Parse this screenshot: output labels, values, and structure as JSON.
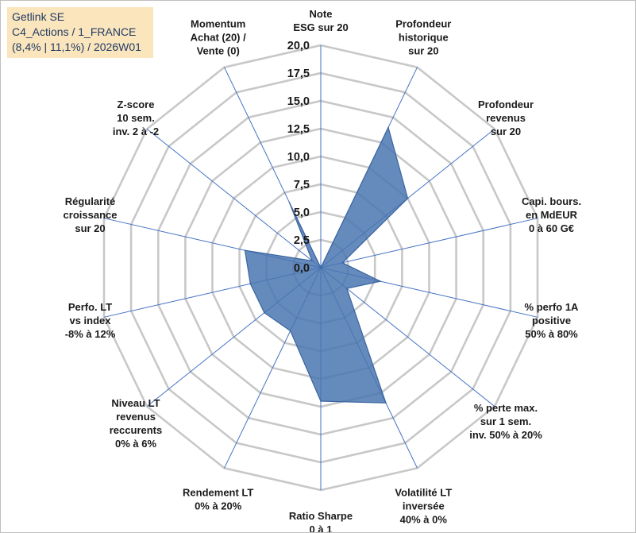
{
  "title_box": {
    "line1": "Getlink SE",
    "line2": "C4_Actions / 1_FRANCE",
    "line3": "(8,4% | 11,1%) / 2026W01"
  },
  "chart_data": {
    "type": "radar",
    "title": "Getlink SE",
    "rmax": 20,
    "tick_step": 2.5,
    "ticks": [
      "0,0",
      "2,5",
      "5,0",
      "7,5",
      "10,0",
      "12,5",
      "15,0",
      "17,5",
      "20,0"
    ],
    "axes": [
      {
        "lines": [
          "Note",
          "ESG sur 20"
        ]
      },
      {
        "lines": [
          "Profondeur",
          "historique",
          "sur 20"
        ]
      },
      {
        "lines": [
          "Profondeur",
          "revenus",
          "sur 20"
        ]
      },
      {
        "lines": [
          "Capi. bours.",
          "en MdEUR",
          "0 à 60 G€"
        ]
      },
      {
        "lines": [
          "% perfo 1A",
          "positive",
          "50% à 80%"
        ]
      },
      {
        "lines": [
          "% perte max.",
          "sur 1 sem.",
          "inv. 50% à 20%"
        ]
      },
      {
        "lines": [
          "Volatilité LT",
          "inversée",
          "40% à 0%"
        ]
      },
      {
        "lines": [
          "Ratio Sharpe",
          "0 à 1"
        ]
      },
      {
        "lines": [
          "Rendement LT",
          "0% à 20%"
        ]
      },
      {
        "lines": [
          "Niveau LT",
          "revenus",
          "reccurents",
          "0% à 6%"
        ]
      },
      {
        "lines": [
          "Perfo. LT",
          "vs index",
          "-8% à 12%"
        ]
      },
      {
        "lines": [
          "Régularité",
          "croissance",
          "sur 20"
        ]
      },
      {
        "lines": [
          "Z-score",
          "10 sem.",
          "inv. 2 à -2"
        ]
      },
      {
        "lines": [
          "Momentum",
          "Achat (20) /",
          "Vente (0)"
        ]
      }
    ],
    "series": [
      {
        "name": "Getlink SE",
        "values": [
          0.0,
          14.0,
          10.0,
          2.0,
          5.5,
          3.0,
          13.5,
          12.0,
          6.3,
          6.5,
          6.5,
          7.0,
          1.0,
          6.5
        ]
      }
    ],
    "colors": {
      "fill": "#4a76b0",
      "stroke": "#3a64a0",
      "grid": "#c8c8c8",
      "spoke": "#4472c4"
    }
  }
}
